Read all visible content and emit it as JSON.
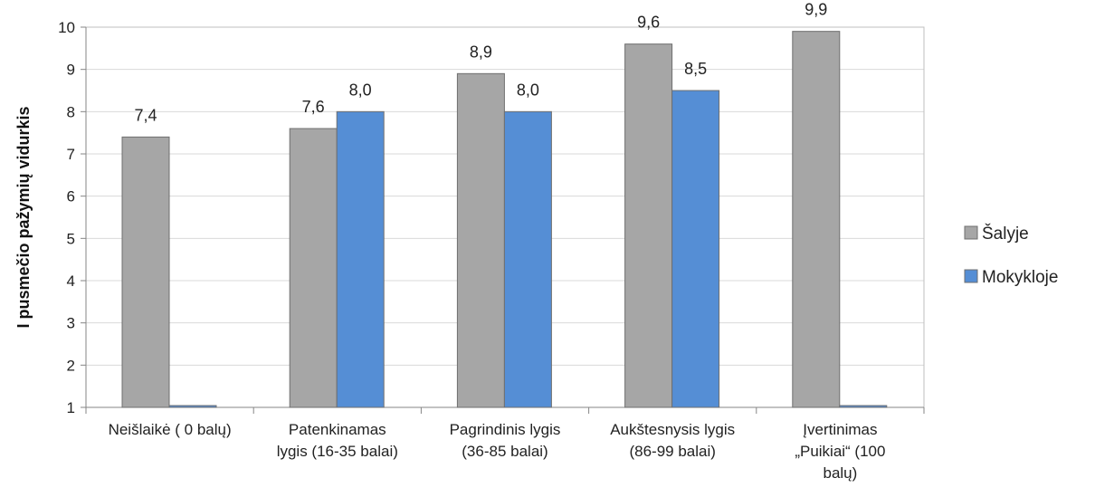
{
  "chart_data": {
    "type": "bar",
    "ylabel": "I pusmečio pažymių vidurkis",
    "xlabel": "",
    "ylim": [
      1,
      10
    ],
    "yticks": [
      1,
      2,
      3,
      4,
      5,
      6,
      7,
      8,
      9,
      10
    ],
    "grid": true,
    "legend_position": "right",
    "categories": [
      [
        "Neišlaikė ( 0 balų)"
      ],
      [
        "Patenkinamas",
        "lygis (16-35 balai)"
      ],
      [
        "Pagrindinis lygis",
        "(36-85 balai)"
      ],
      [
        "Aukštesnysis lygis",
        "(86-99 balai)"
      ],
      [
        "Įvertinimas",
        "„Puikiai“ (100",
        "balų)"
      ]
    ],
    "series": [
      {
        "name": "Šalyje",
        "color": "#a6a6a6",
        "values": [
          7.4,
          7.6,
          8.9,
          9.6,
          9.9
        ],
        "labels": [
          "7,4",
          "7,6",
          "8,9",
          "9,6",
          "9,9"
        ]
      },
      {
        "name": "Mokykloje",
        "color": "#558ed5",
        "values": [
          1.0,
          8.0,
          8.0,
          8.5,
          1.0
        ],
        "labels": [
          "",
          "8,0",
          "8,0",
          "8,5",
          ""
        ]
      }
    ]
  }
}
